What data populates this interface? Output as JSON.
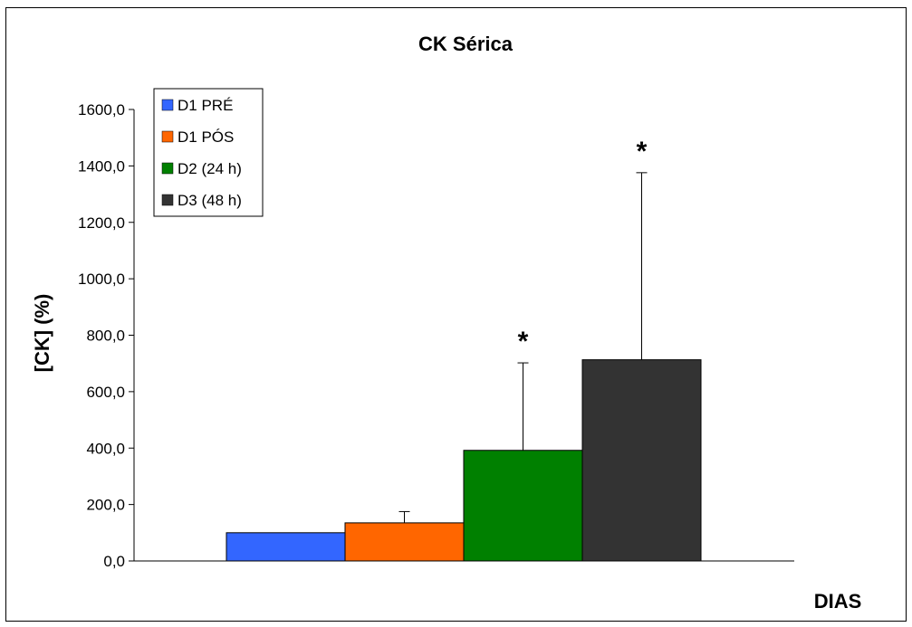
{
  "chart_data": {
    "type": "bar",
    "title": "CK Sérica",
    "xlabel": "DIAS",
    "ylabel": "[CK] (%)",
    "ylim": [
      0,
      1600
    ],
    "yticks": [
      "0,0",
      "200,0",
      "400,0",
      "600,0",
      "800,0",
      "1000,0",
      "1200,0",
      "1400,0",
      "1600,0"
    ],
    "grid": false,
    "legend_position": "top-left",
    "series": [
      {
        "name": "D1 PRÉ",
        "value": 100,
        "error": 0,
        "color": "#3366ff",
        "annotation": ""
      },
      {
        "name": "D1 PÓS",
        "value": 135,
        "error": 40,
        "color": "#ff6600",
        "annotation": ""
      },
      {
        "name": "D2 (24 h)",
        "value": 392,
        "error": 310,
        "color": "#008000",
        "annotation": "*"
      },
      {
        "name": "D3 (48 h)",
        "value": 713,
        "error": 663,
        "color": "#333333",
        "annotation": "*"
      }
    ]
  }
}
